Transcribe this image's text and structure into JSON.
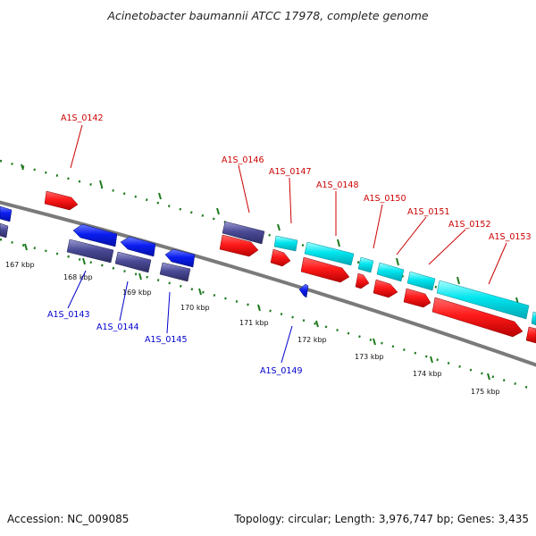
{
  "title": "Acinetobacter baumannii ATCC 17978, complete genome",
  "footer": {
    "accession": "Accession: NC_009085",
    "summary": "Topology: circular; Length: 3,976,747 bp; Genes: 3,435"
  },
  "colors": {
    "backbone": "#7a7a7a",
    "scale_ticks": "#1f7a1f",
    "forward_label": "#cc0000",
    "reverse_label": "#0000cc",
    "gene_red": "#ff1a1a",
    "gene_cyan": "#00e5ee",
    "gene_blue": "#0b1df0",
    "gene_purple": "#4a4a96"
  },
  "scale_labels": [
    "167 kbp",
    "168 kbp",
    "169 kbp",
    "170 kbp",
    "171 kbp",
    "172 kbp",
    "173 kbp",
    "174 kbp",
    "175 kbp"
  ],
  "forward_labels": [
    "A1S_0142",
    "A1S_0146",
    "A1S_0147",
    "A1S_0148",
    "A1S_0150",
    "A1S_0151",
    "A1S_0152",
    "A1S_0153"
  ],
  "reverse_labels": [
    "A1S_0143",
    "A1S_0144",
    "A1S_0145",
    "A1S_0149"
  ]
}
